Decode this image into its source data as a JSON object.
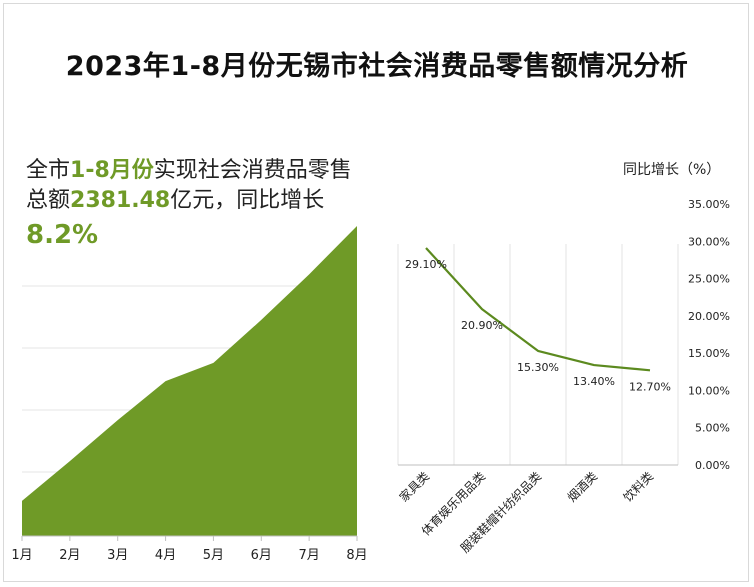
{
  "title": "2023年1-8月份无锡市社会消费品零售额情况分析",
  "summary": {
    "prefix": "全市",
    "period": "1-8月份",
    "middle": "实现社会消费品零售总额",
    "amount": "2381.48",
    "suffix": "亿元，同比增长",
    "growth": "8.2%"
  },
  "colors": {
    "area_fill": "#6f9a27",
    "line": "#5c8a1f",
    "highlight": "#6f9a27"
  },
  "chart_data": [
    {
      "type": "area",
      "categories": [
        "1月",
        "2月",
        "3月",
        "4月",
        "5月",
        "6月",
        "7月",
        "8月"
      ],
      "values": [
        270,
        575,
        890,
        1190,
        1330,
        1660,
        2010,
        2381.48
      ],
      "ylim": [
        0,
        2381.48
      ],
      "grid": true
    },
    {
      "type": "line",
      "categories": [
        "家具类",
        "体育娱乐用品类",
        "服装鞋帽针纺织品类",
        "烟酒类",
        "饮料类"
      ],
      "values": [
        29.1,
        20.9,
        15.3,
        13.4,
        12.7
      ],
      "data_labels": [
        "29.10%",
        "20.90%",
        "15.30%",
        "13.40%",
        "12.70%"
      ],
      "ylabel": "同比增长（%）",
      "ylim": [
        0,
        35
      ],
      "yticks": [
        "0.00%",
        "5.00%",
        "10.00%",
        "15.00%",
        "20.00%",
        "25.00%",
        "30.00%",
        "35.00%"
      ],
      "grid": true
    }
  ]
}
